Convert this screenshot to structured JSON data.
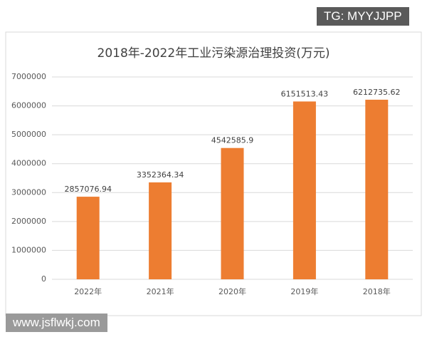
{
  "chart_data": {
    "type": "bar",
    "title": "2018年-2022年工业污染源治理投资(万元)",
    "categories": [
      "2022年",
      "2021年",
      "2020年",
      "2019年",
      "2018年"
    ],
    "values": [
      2857076.94,
      3352364.34,
      4542585.9,
      6151513.43,
      6212735.62
    ],
    "color": "#ed7d31",
    "ylim": [
      0,
      7000000
    ],
    "yticks": [
      0,
      1000000,
      2000000,
      3000000,
      4000000,
      5000000,
      6000000,
      7000000
    ],
    "grid": true
  },
  "watermarks": [
    "TG: MYYJJPP",
    "www.jsflwkj.com"
  ]
}
